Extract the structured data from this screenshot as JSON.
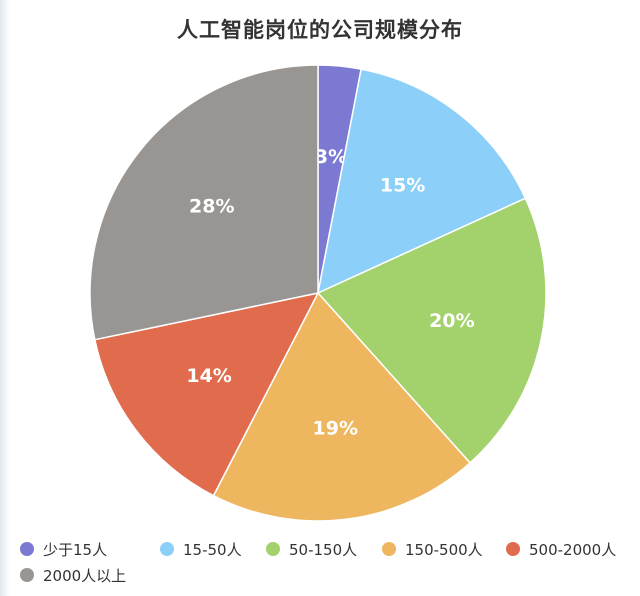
{
  "chart_data": {
    "type": "pie",
    "title": "人工智能岗位的公司规模分布",
    "slices": [
      {
        "label": "少于15人",
        "value": 3,
        "display": "3%",
        "color": "#7b79d1"
      },
      {
        "label": "15-50人",
        "value": 15,
        "display": "15%",
        "color": "#8ccff8"
      },
      {
        "label": "50-150人",
        "value": 20,
        "display": "20%",
        "color": "#a3d16c"
      },
      {
        "label": "150-500人",
        "value": 19,
        "display": "19%",
        "color": "#eeb65e"
      },
      {
        "label": "500-2000人",
        "value": 14,
        "display": "14%",
        "color": "#e06b4d"
      },
      {
        "label": "2000人以上",
        "value": 28,
        "display": "28%",
        "color": "#989592"
      }
    ],
    "legend_position": "bottom"
  }
}
